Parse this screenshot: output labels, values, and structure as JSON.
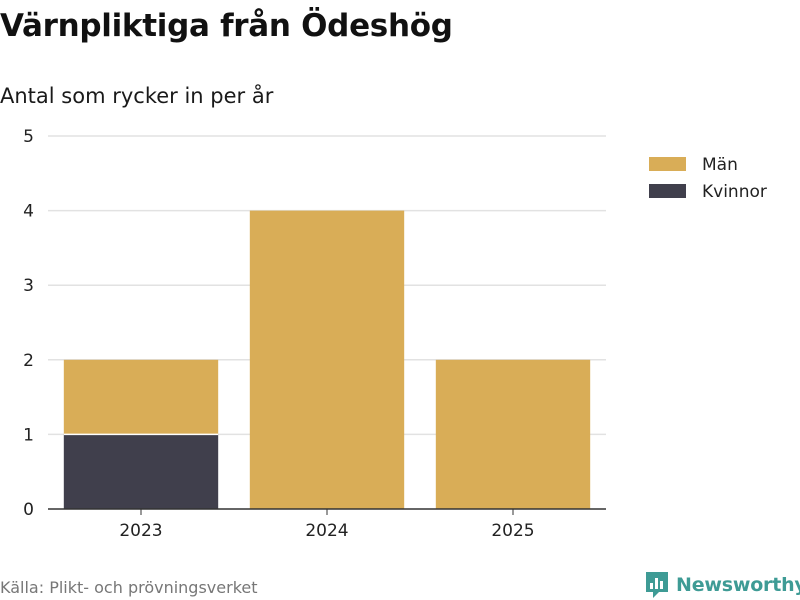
{
  "header": {
    "title": "Värnpliktiga från Ödeshög",
    "subtitle": "Antal som rycker in per år"
  },
  "footer": {
    "source": "Källa: Plikt- och prövningsverket",
    "brand": "Newsworthy",
    "brand_icon": "newsworthy-logo-icon"
  },
  "colors": {
    "men": "#d9ad57",
    "women": "#403f4c",
    "grid": "#e2e2e2",
    "axis": "#333333",
    "brand": "#3e9b95"
  },
  "chart_data": {
    "type": "bar",
    "stacked": true,
    "title": "Värnpliktiga från Ödeshög",
    "subtitle": "Antal som rycker in per år",
    "xlabel": "",
    "ylabel": "",
    "categories": [
      "2023",
      "2024",
      "2025"
    ],
    "series": [
      {
        "name": "Kvinnor",
        "values": [
          1,
          0,
          0
        ],
        "color": "#403f4c"
      },
      {
        "name": "Män",
        "values": [
          1,
          4,
          2
        ],
        "color": "#d9ad57"
      }
    ],
    "legend_order": [
      "Män",
      "Kvinnor"
    ],
    "ylim": [
      0,
      5
    ],
    "yticks": [
      0,
      1,
      2,
      3,
      4,
      5
    ],
    "grid": true,
    "legend_position": "top-right"
  }
}
